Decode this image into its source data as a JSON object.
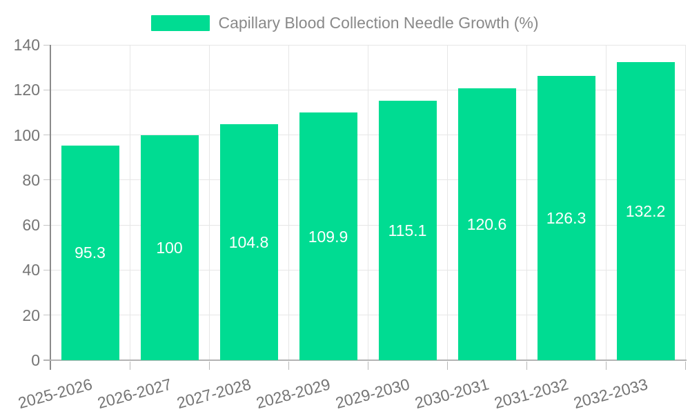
{
  "chart_data": {
    "type": "bar",
    "title": "Capillary Blood Collection Needle Growth (%)",
    "categories": [
      "2025-2026",
      "2026-2027",
      "2027-2028",
      "2028-2029",
      "2029-2030",
      "2030-2031",
      "2031-2032",
      "2032-2033"
    ],
    "values": [
      95.3,
      100,
      104.8,
      109.9,
      115.1,
      120.6,
      126.3,
      132.2
    ],
    "value_labels": [
      "95.3",
      "100",
      "104.8",
      "109.9",
      "115.1",
      "120.6",
      "126.3",
      "132.2"
    ],
    "xlabel": "",
    "ylabel": "",
    "ylim": [
      0,
      140
    ],
    "yticks": [
      0,
      20,
      40,
      60,
      80,
      100,
      120,
      140
    ],
    "grid": "both",
    "legend": {
      "position": "top-center",
      "entries": [
        {
          "label": "Capillary Blood Collection Needle Growth (%)",
          "color": "#00dc92"
        }
      ]
    },
    "colors": {
      "bar": "#00dc92",
      "data_label": "#ffffff",
      "axis_text": "#757575",
      "legend_text": "#898989",
      "gridline": "#e6e6e6",
      "y_axis_line": "#8a8a8a",
      "x_axis_line": "#b3b3b3"
    },
    "x_label_rotation_deg": -15
  }
}
